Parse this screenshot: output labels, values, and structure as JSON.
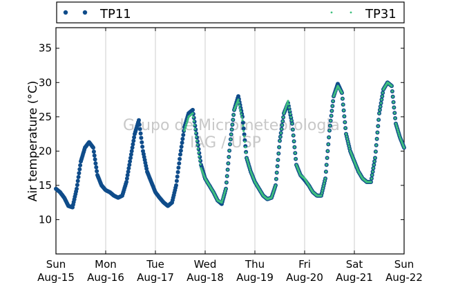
{
  "chart_data": {
    "type": "scatter",
    "title": "",
    "ylabel": "Air temperature (°C)",
    "xlabel": "",
    "ylim": [
      5,
      38
    ],
    "yticks": [
      10,
      15,
      20,
      25,
      30,
      35
    ],
    "xlim": [
      "2016-08-15",
      "2016-08-22"
    ],
    "xticks": [
      {
        "day": "Sun",
        "date": "Aug-15"
      },
      {
        "day": "Mon",
        "date": "Aug-16"
      },
      {
        "day": "Tue",
        "date": "Aug-17"
      },
      {
        "day": "Wed",
        "date": "Aug-18"
      },
      {
        "day": "Thu",
        "date": "Aug-19"
      },
      {
        "day": "Fri",
        "date": "Aug-20"
      },
      {
        "day": "Sat",
        "date": "Aug-21"
      },
      {
        "day": "Sun",
        "date": "Aug-22"
      }
    ],
    "grid": "vertical",
    "legend": "top",
    "watermark": [
      "Grupo de Micrometeorologia",
      "IAG / USP"
    ],
    "series": [
      {
        "name": "TP11",
        "color": "#0f4c8a",
        "marker": "dot-large",
        "x": [
          "2016-08-15 00:00",
          "2016-08-15 02:00",
          "2016-08-15 04:00",
          "2016-08-15 06:00",
          "2016-08-15 08:00",
          "2016-08-15 10:00",
          "2016-08-15 12:00",
          "2016-08-15 14:00",
          "2016-08-15 16:00",
          "2016-08-15 18:00",
          "2016-08-15 20:00",
          "2016-08-15 22:00",
          "2016-08-16 00:00",
          "2016-08-16 02:00",
          "2016-08-16 04:00",
          "2016-08-16 06:00",
          "2016-08-16 08:00",
          "2016-08-16 10:00",
          "2016-08-16 12:00",
          "2016-08-16 14:00",
          "2016-08-16 16:00",
          "2016-08-16 18:00",
          "2016-08-16 20:00",
          "2016-08-16 22:00",
          "2016-08-17 00:00",
          "2016-08-17 02:00",
          "2016-08-17 04:00",
          "2016-08-17 06:00",
          "2016-08-17 08:00",
          "2016-08-17 10:00",
          "2016-08-17 12:00",
          "2016-08-17 14:00",
          "2016-08-17 16:00",
          "2016-08-17 18:00",
          "2016-08-17 20:00",
          "2016-08-17 22:00",
          "2016-08-18 00:00",
          "2016-08-18 02:00",
          "2016-08-18 04:00",
          "2016-08-18 06:00",
          "2016-08-18 08:00",
          "2016-08-18 10:00",
          "2016-08-18 12:00",
          "2016-08-18 14:00",
          "2016-08-18 16:00",
          "2016-08-18 18:00",
          "2016-08-18 20:00",
          "2016-08-18 22:00",
          "2016-08-19 00:00",
          "2016-08-19 02:00",
          "2016-08-19 04:00",
          "2016-08-19 06:00",
          "2016-08-19 08:00",
          "2016-08-19 10:00",
          "2016-08-19 12:00",
          "2016-08-19 14:00",
          "2016-08-19 16:00",
          "2016-08-19 18:00",
          "2016-08-19 20:00",
          "2016-08-19 22:00",
          "2016-08-20 00:00",
          "2016-08-20 02:00",
          "2016-08-20 04:00",
          "2016-08-20 06:00",
          "2016-08-20 08:00",
          "2016-08-20 10:00",
          "2016-08-20 12:00",
          "2016-08-20 14:00",
          "2016-08-20 16:00",
          "2016-08-20 18:00",
          "2016-08-20 20:00",
          "2016-08-20 22:00",
          "2016-08-21 00:00",
          "2016-08-21 02:00",
          "2016-08-21 04:00",
          "2016-08-21 06:00",
          "2016-08-21 08:00",
          "2016-08-21 10:00",
          "2016-08-21 12:00",
          "2016-08-21 14:00",
          "2016-08-21 16:00",
          "2016-08-21 18:00",
          "2016-08-21 20:00",
          "2016-08-21 22:00",
          "2016-08-22 00:00"
        ],
        "y": [
          14.5,
          14.0,
          13.2,
          12.0,
          11.8,
          14.5,
          18.5,
          20.5,
          21.3,
          20.5,
          16.5,
          15.0,
          14.3,
          14.0,
          13.5,
          13.2,
          13.5,
          15.5,
          19.0,
          22.5,
          24.5,
          20.0,
          17.0,
          15.5,
          14.0,
          13.2,
          12.5,
          12.0,
          12.5,
          15.0,
          19.5,
          23.5,
          25.5,
          26.0,
          22.0,
          18.0,
          16.0,
          15.0,
          14.0,
          12.8,
          12.3,
          14.5,
          21.0,
          26.0,
          28.0,
          25.0,
          19.0,
          17.0,
          15.5,
          14.5,
          13.5,
          13.0,
          13.2,
          15.0,
          21.5,
          25.5,
          27.0,
          24.0,
          18.0,
          16.5,
          15.8,
          15.0,
          14.0,
          13.5,
          13.5,
          16.0,
          23.0,
          28.0,
          29.8,
          28.5,
          22.5,
          20.0,
          18.5,
          17.0,
          16.0,
          15.5,
          15.5,
          19.0,
          25.5,
          29.0,
          30.0,
          29.5,
          24.0,
          22.0,
          20.5
        ]
      },
      {
        "name": "TP31",
        "color": "#3fbf7f",
        "marker": "dot-small",
        "x": [
          "2016-08-17 14:00",
          "2016-08-17 16:00",
          "2016-08-17 18:00",
          "2016-08-17 20:00",
          "2016-08-17 22:00",
          "2016-08-18 00:00",
          "2016-08-18 02:00",
          "2016-08-18 04:00",
          "2016-08-18 06:00",
          "2016-08-18 08:00",
          "2016-08-18 10:00",
          "2016-08-18 12:00",
          "2016-08-18 14:00",
          "2016-08-18 16:00",
          "2016-08-18 18:00",
          "2016-08-18 20:00",
          "2016-08-18 22:00",
          "2016-08-19 00:00",
          "2016-08-19 02:00",
          "2016-08-19 04:00",
          "2016-08-19 06:00",
          "2016-08-19 08:00",
          "2016-08-19 10:00",
          "2016-08-19 12:00",
          "2016-08-19 14:00",
          "2016-08-19 16:00",
          "2016-08-19 18:00",
          "2016-08-19 20:00",
          "2016-08-19 22:00",
          "2016-08-20 00:00",
          "2016-08-20 02:00",
          "2016-08-20 04:00",
          "2016-08-20 06:00",
          "2016-08-20 08:00",
          "2016-08-20 10:00",
          "2016-08-20 12:00",
          "2016-08-20 14:00",
          "2016-08-20 16:00",
          "2016-08-20 18:00",
          "2016-08-20 20:00",
          "2016-08-20 22:00",
          "2016-08-21 00:00",
          "2016-08-21 02:00",
          "2016-08-21 04:00",
          "2016-08-21 06:00",
          "2016-08-21 08:00",
          "2016-08-21 10:00",
          "2016-08-21 12:00",
          "2016-08-21 14:00",
          "2016-08-21 16:00",
          "2016-08-21 18:00",
          "2016-08-21 20:00",
          "2016-08-21 22:00",
          "2016-08-22 00:00"
        ],
        "y": [
          23.0,
          25.0,
          25.5,
          21.5,
          17.5,
          16.0,
          15.0,
          14.0,
          12.8,
          12.5,
          14.5,
          21.0,
          26.0,
          27.5,
          24.5,
          19.0,
          17.0,
          15.5,
          14.5,
          13.5,
          13.0,
          13.2,
          15.0,
          21.5,
          25.5,
          27.3,
          24.0,
          18.0,
          16.5,
          16.0,
          15.0,
          14.0,
          13.5,
          13.5,
          16.0,
          23.0,
          28.0,
          29.5,
          28.5,
          22.5,
          20.0,
          18.5,
          17.0,
          16.0,
          15.5,
          15.5,
          19.0,
          25.5,
          29.0,
          30.0,
          29.5,
          24.0,
          22.0,
          20.5
        ]
      }
    ]
  }
}
